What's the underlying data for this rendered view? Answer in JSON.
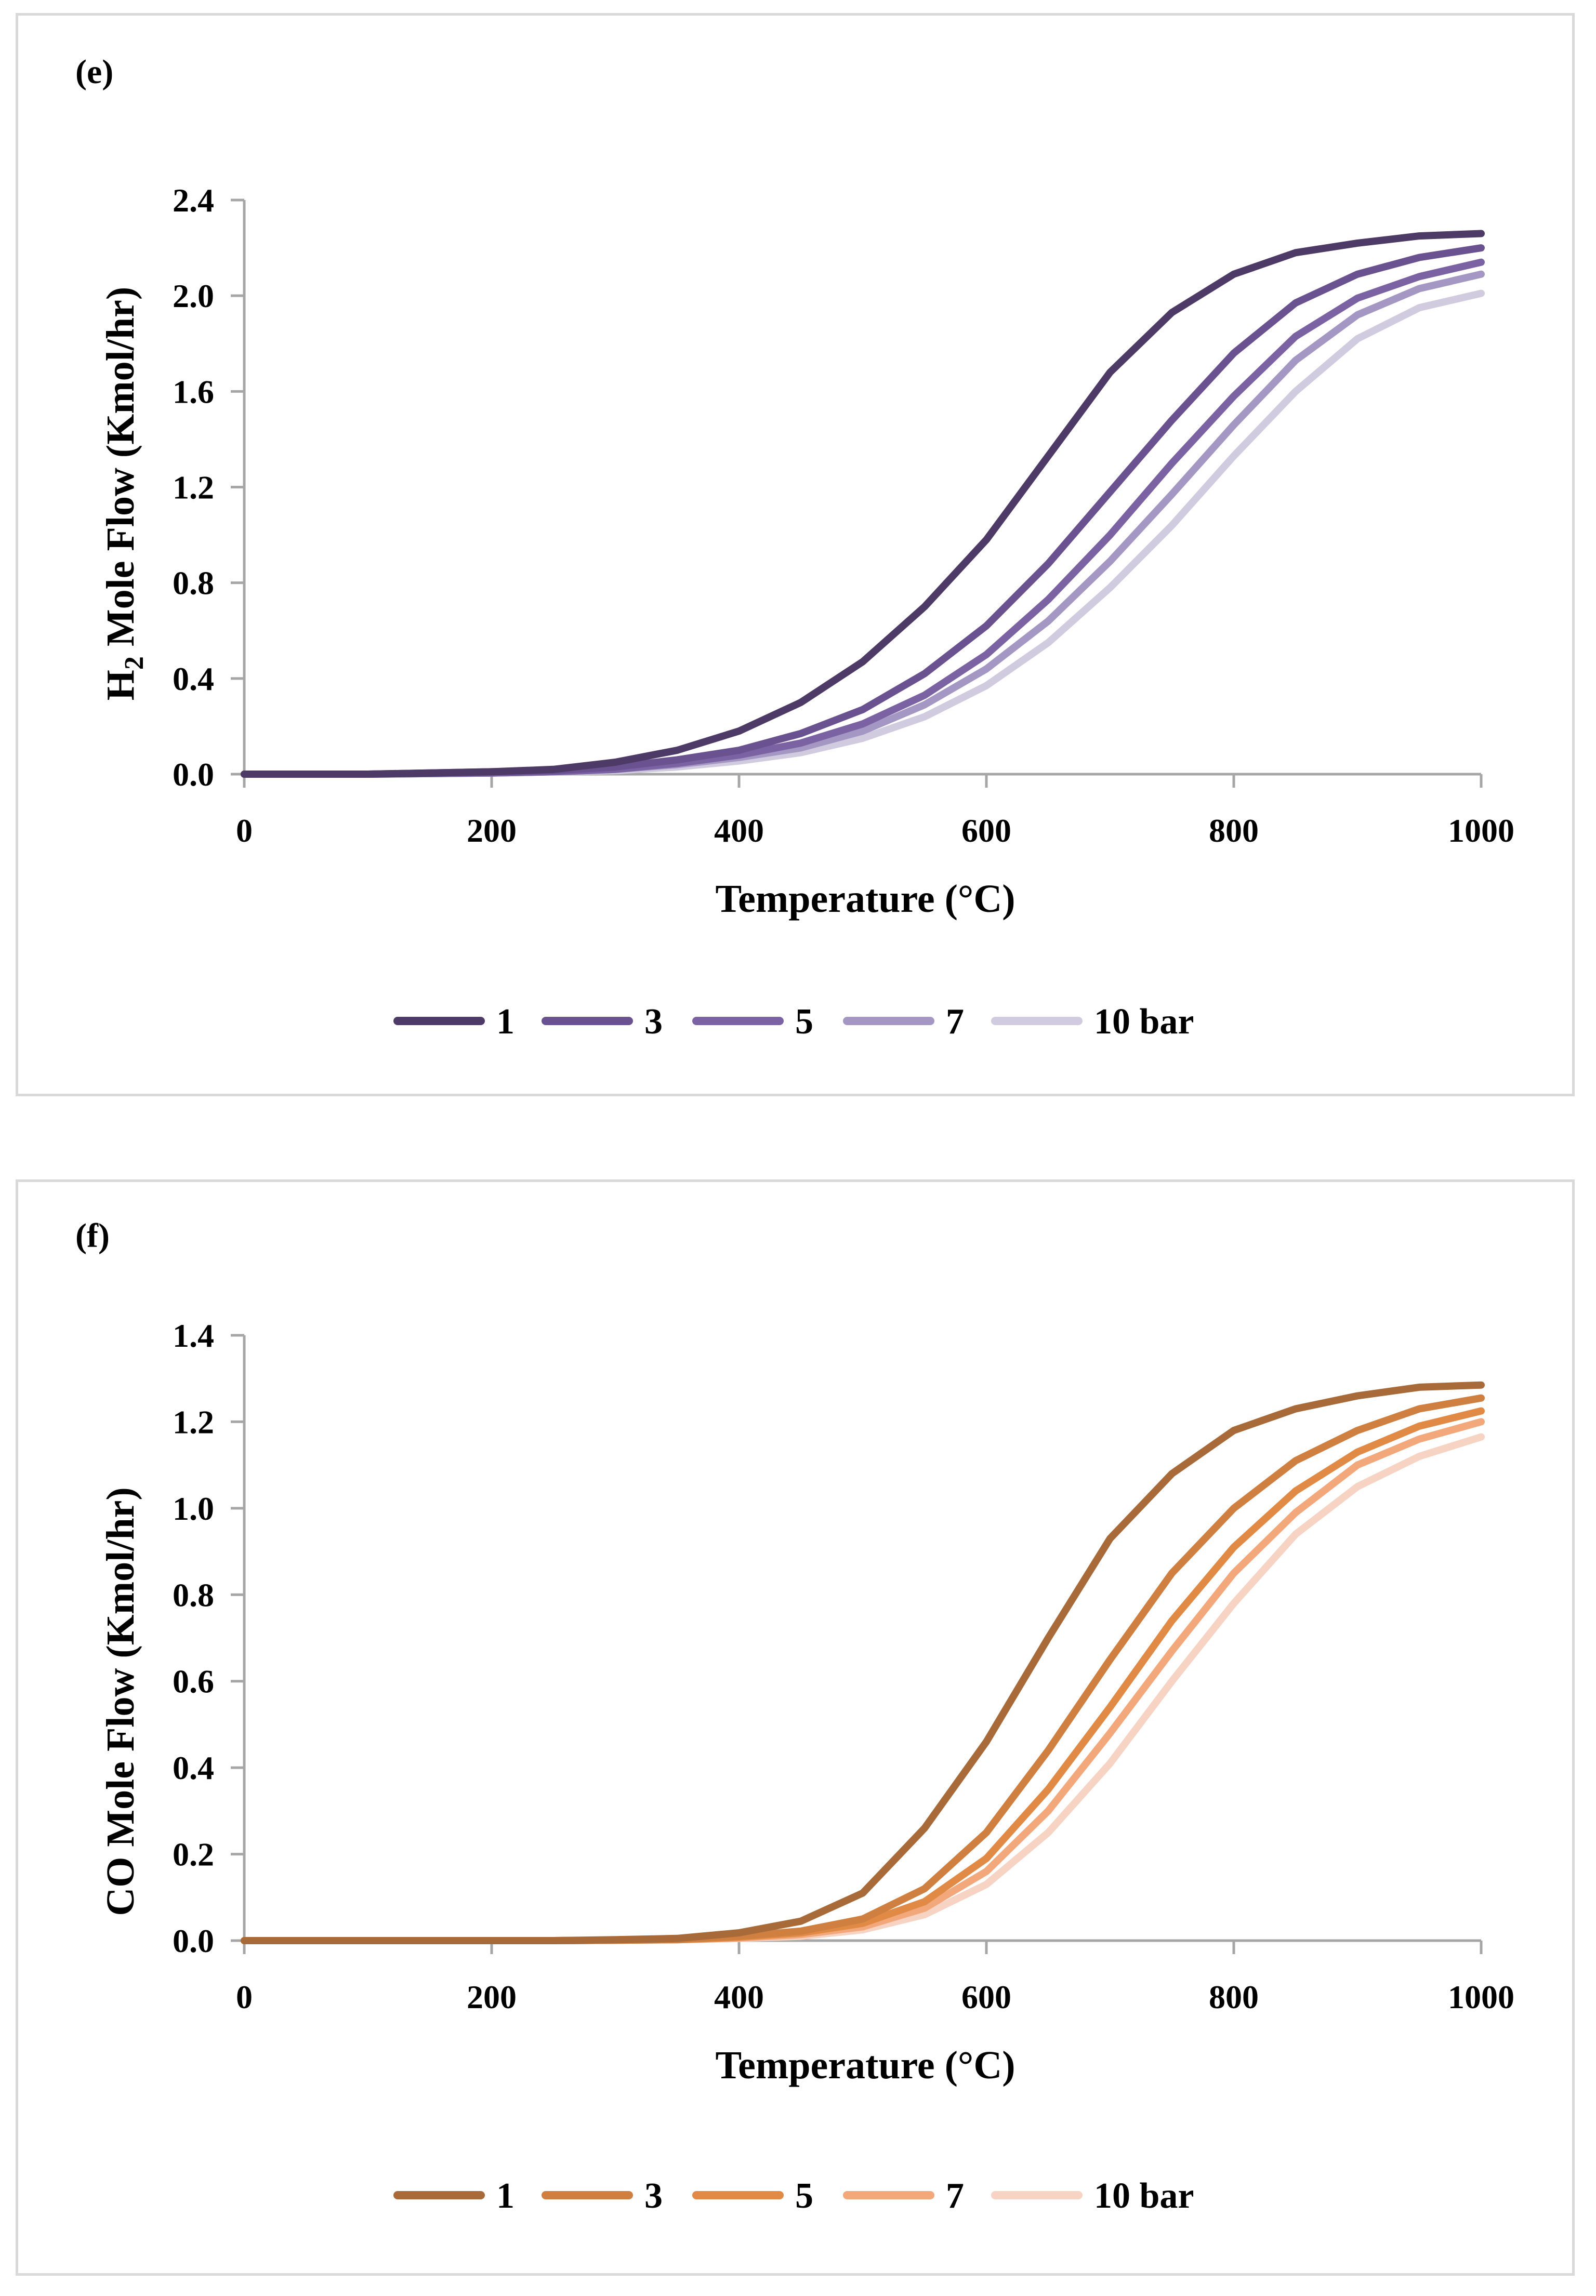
{
  "chart_data": [
    {
      "type": "line",
      "panel_label": "(e)",
      "xlabel": "Temperature (°C)",
      "ylabel_main": "H",
      "ylabel_sub": "2",
      "ylabel_rest": " Mole Flow (Kmol/hr)",
      "xlim": [
        0,
        1000
      ],
      "ylim": [
        0,
        2.4
      ],
      "x_ticks": [
        "0",
        "200",
        "400",
        "600",
        "800",
        "1000"
      ],
      "y_ticks": [
        "0.0",
        "0.4",
        "0.8",
        "1.2",
        "1.6",
        "2.0",
        "2.4"
      ],
      "grid": false,
      "legend_position": "bottom",
      "x": [
        0,
        100,
        200,
        250,
        300,
        350,
        400,
        450,
        500,
        550,
        600,
        650,
        700,
        750,
        800,
        850,
        900,
        950,
        1000
      ],
      "series": [
        {
          "name": "1",
          "color": "#4d3a66",
          "values": [
            0,
            0,
            0.01,
            0.02,
            0.05,
            0.1,
            0.18,
            0.3,
            0.47,
            0.7,
            0.98,
            1.33,
            1.68,
            1.93,
            2.09,
            2.18,
            2.22,
            2.25,
            2.26
          ]
        },
        {
          "name": "3",
          "color": "#6a5290",
          "values": [
            0,
            0,
            0.01,
            0.015,
            0.03,
            0.06,
            0.1,
            0.17,
            0.27,
            0.42,
            0.62,
            0.88,
            1.18,
            1.48,
            1.76,
            1.97,
            2.09,
            2.16,
            2.2
          ]
        },
        {
          "name": "5",
          "color": "#7b62a3",
          "values": [
            0,
            0,
            0.005,
            0.01,
            0.02,
            0.045,
            0.08,
            0.13,
            0.21,
            0.33,
            0.5,
            0.73,
            1.0,
            1.3,
            1.58,
            1.83,
            1.99,
            2.08,
            2.14
          ]
        },
        {
          "name": "7",
          "color": "#a497c3",
          "values": [
            0,
            0,
            0.005,
            0.01,
            0.02,
            0.04,
            0.07,
            0.11,
            0.18,
            0.29,
            0.44,
            0.64,
            0.89,
            1.17,
            1.46,
            1.73,
            1.92,
            2.03,
            2.09
          ]
        },
        {
          "name": "10 bar",
          "color": "#d1cbdf",
          "values": [
            0,
            0,
            0.005,
            0.01,
            0.015,
            0.03,
            0.055,
            0.09,
            0.15,
            0.24,
            0.37,
            0.55,
            0.78,
            1.04,
            1.33,
            1.6,
            1.82,
            1.95,
            2.01
          ]
        }
      ]
    },
    {
      "type": "line",
      "panel_label": "(f)",
      "xlabel": "Temperature (°C)",
      "ylabel": "CO Mole Flow (Kmol/hr)",
      "xlim": [
        0,
        1000
      ],
      "ylim": [
        0,
        1.4
      ],
      "x_ticks": [
        "0",
        "200",
        "400",
        "600",
        "800",
        "1000"
      ],
      "y_ticks": [
        "0.0",
        "0.2",
        "0.4",
        "0.6",
        "0.8",
        "1.0",
        "1.2",
        "1.4"
      ],
      "grid": false,
      "legend_position": "bottom",
      "x": [
        0,
        100,
        200,
        250,
        300,
        350,
        400,
        450,
        500,
        550,
        600,
        650,
        700,
        750,
        800,
        850,
        900,
        950,
        1000
      ],
      "series": [
        {
          "name": "1",
          "color": "#a86a38",
          "values": [
            0,
            0,
            0,
            0,
            0.002,
            0.005,
            0.018,
            0.045,
            0.11,
            0.26,
            0.46,
            0.7,
            0.93,
            1.08,
            1.18,
            1.23,
            1.26,
            1.28,
            1.285
          ]
        },
        {
          "name": "3",
          "color": "#cf7f3f",
          "values": [
            0,
            0,
            0,
            0,
            0.001,
            0.003,
            0.01,
            0.022,
            0.05,
            0.12,
            0.25,
            0.44,
            0.65,
            0.85,
            1.0,
            1.11,
            1.18,
            1.23,
            1.255
          ]
        },
        {
          "name": "5",
          "color": "#e08a45",
          "values": [
            0,
            0,
            0,
            0,
            0.001,
            0.002,
            0.008,
            0.018,
            0.04,
            0.09,
            0.19,
            0.35,
            0.54,
            0.74,
            0.91,
            1.04,
            1.13,
            1.19,
            1.225
          ]
        },
        {
          "name": "7",
          "color": "#f2a87a",
          "values": [
            0,
            0,
            0,
            0,
            0.001,
            0.002,
            0.006,
            0.014,
            0.032,
            0.075,
            0.16,
            0.3,
            0.48,
            0.67,
            0.85,
            0.99,
            1.1,
            1.16,
            1.2
          ]
        },
        {
          "name": "10 bar",
          "color": "#f6d3c2",
          "values": [
            0,
            0,
            0,
            0,
            0.001,
            0.002,
            0.005,
            0.01,
            0.025,
            0.06,
            0.13,
            0.25,
            0.41,
            0.6,
            0.78,
            0.94,
            1.05,
            1.12,
            1.165
          ]
        }
      ]
    }
  ]
}
